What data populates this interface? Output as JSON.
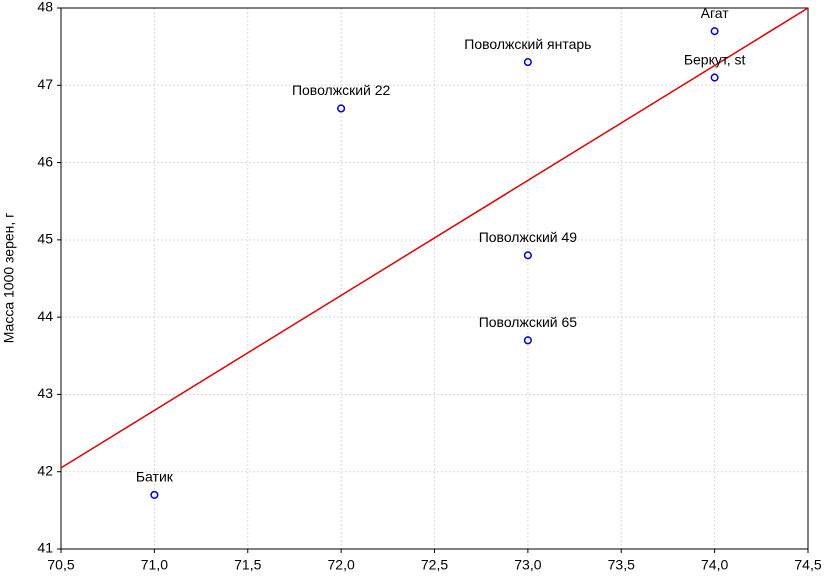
{
  "chart_data": {
    "type": "scatter",
    "y_label": "Масса 1000 зерен, г",
    "x": [
      74.0,
      74.0,
      73.0,
      72.0,
      73.0,
      73.0,
      71.0
    ],
    "y": [
      47.7,
      47.1,
      47.3,
      46.7,
      44.8,
      43.7,
      41.7
    ],
    "point_labels": [
      "Агат",
      "Беркут, st",
      "Поволжский янтарь",
      "Поволжский 22",
      "Поволжский 49",
      "Поволжский 65",
      "Батик"
    ],
    "color": "#0000cc",
    "trendline": {
      "x": [
        70.5,
        74.5
      ],
      "y": [
        42.05,
        48
      ],
      "color": "#dd0000"
    },
    "xlim": [
      70.5,
      74.5
    ],
    "ylim": [
      41,
      48
    ],
    "xticks": [
      {
        "value": 70.5,
        "label": "70,5"
      },
      {
        "value": 71,
        "label": "71,0"
      },
      {
        "value": 71.5,
        "label": "71,5"
      },
      {
        "value": 72,
        "label": "72,0"
      },
      {
        "value": 72.5,
        "label": "72,5"
      },
      {
        "value": 73,
        "label": "73,0"
      },
      {
        "value": 73.5,
        "label": "73,5"
      },
      {
        "value": 74,
        "label": "74,0"
      },
      {
        "value": 74.5,
        "label": "74,5"
      }
    ],
    "yticks": [
      41,
      42,
      43,
      44,
      45,
      46,
      47,
      48
    ],
    "grid": true
  }
}
